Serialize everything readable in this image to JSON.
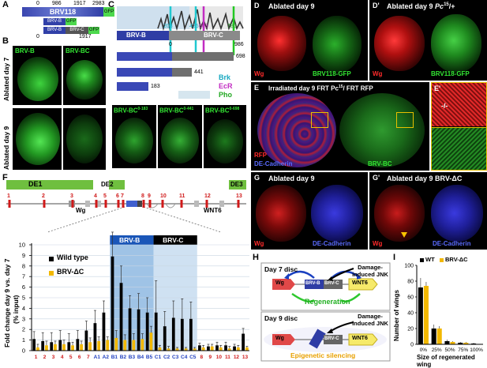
{
  "panels": {
    "A": {
      "letter": "A",
      "coords": [
        "0",
        "986",
        "1917",
        "2983"
      ],
      "brv118": "BRV118",
      "gfp": "GFP",
      "brvb": "BRV-B",
      "brvc": "BRV-C",
      "gfp2": "GFP",
      "gfp3": "GFP",
      "scale0": "0",
      "scale1917": "1917"
    },
    "B": {
      "letter": "B",
      "col1": "BRV-B",
      "col2": "BRV-BC",
      "row1": "Ablated day 7",
      "row2": "Ablated day 9"
    },
    "C": {
      "letter": "C",
      "peaks": [
        "203",
        "425",
        "503",
        "780"
      ],
      "brvb": "BRV-B",
      "brvc": "BRV-C",
      "zero": "0",
      "end986": "986",
      "len698": "698",
      "len441": "441",
      "len183": "183",
      "legend": [
        "Brk",
        "EcR",
        "Pho"
      ],
      "micro": [
        "BRV-BC",
        "0-183",
        "BRV-BC",
        "0-441",
        "BRV-BC",
        "0-698"
      ]
    },
    "D": {
      "letter": "D",
      "title": "Ablated day 9",
      "wg": "Wg",
      "gfp": "BRV118-GFP"
    },
    "D2": {
      "letter": "D'",
      "title": "Ablated day 9",
      "pc": "Pc",
      "pcsup": "15",
      "pcend": "/+",
      "wg": "Wg",
      "gfp": "BRV118-GFP"
    },
    "E": {
      "letter": "E",
      "title": "Irradiated day 9  FRT Pc",
      "sup": "15",
      "title_end": "/ FRT RFP",
      "rfp": "RFP",
      "dec": "DE-Cadherin",
      "brvbc": "BRV-BC"
    },
    "E2": {
      "letter": "E'",
      "genotype": "-/-"
    },
    "G": {
      "letter": "G",
      "title": "Ablated day 9",
      "wg": "Wg",
      "dec": "DE-Cadherin"
    },
    "G2": {
      "letter": "G'",
      "title": "Ablated day 9 BRV-ΔC",
      "wg": "Wg",
      "dec": "DE-Cadherin"
    },
    "F": {
      "letter": "F",
      "de1": "DE1",
      "de2": "DE2",
      "de3": "DE3",
      "wg": "Wg",
      "wnt6": "WNT6",
      "map_numbers": [
        "1",
        "2",
        "3",
        "4",
        "5",
        "6",
        "7",
        "8",
        "9",
        "10",
        "11",
        "12",
        "13"
      ],
      "brvb": "BRV-B",
      "brvc": "BRV-C",
      "ylabel1": "Fold change day 9 vs. day 7",
      "ylabel2": "(% input)",
      "legend_wt": "Wild type",
      "legend_dc": "BRV-ΔC"
    },
    "H": {
      "letter": "H",
      "day7": "Day 7 disc",
      "day9": "Day 9 disc",
      "jnk1": "Damage-induced JNK",
      "jnk2": "Damage-induced JNK",
      "wg": "Wg",
      "brvb": "BRV-B",
      "brvc": "BRV-C",
      "wnt6": "WNT6",
      "regeneration": "Regeneration",
      "wg2": "Wg",
      "brvc2": "BRV-C",
      "wnt6b": "WNT6",
      "silencing": "Epigenetic silencing"
    },
    "I": {
      "letter": "I",
      "legend_wt": "WT",
      "legend_dc": "BRV-ΔC",
      "ylabel": "Number of wings",
      "xlabel": "Size of regenerated wing"
    }
  },
  "chart_data": [
    {
      "type": "bar",
      "panel": "F",
      "categories": [
        "1",
        "2",
        "3",
        "4",
        "5",
        "6",
        "7",
        "A1",
        "A2",
        "B1",
        "B2",
        "B3",
        "B4",
        "B5",
        "C1",
        "C2",
        "C3",
        "C4",
        "C5",
        "8",
        "9",
        "10",
        "11",
        "12",
        "13"
      ],
      "category_colors": [
        "#d01a1a",
        "#d01a1a",
        "#d01a1a",
        "#d01a1a",
        "#d01a1a",
        "#d01a1a",
        "#d01a1a",
        "#1f3fbf",
        "#1f3fbf",
        "#1f3fbf",
        "#1f3fbf",
        "#1f3fbf",
        "#1f3fbf",
        "#1f3fbf",
        "#1f3fbf",
        "#1f3fbf",
        "#1f3fbf",
        "#1f3fbf",
        "#1f3fbf",
        "#d01a1a",
        "#d01a1a",
        "#d01a1a",
        "#d01a1a",
        "#d01a1a",
        "#d01a1a"
      ],
      "series": [
        {
          "name": "Wild type",
          "color": "#000000",
          "values": [
            1.1,
            0.9,
            0.8,
            1.0,
            0.8,
            1.1,
            1.9,
            2.6,
            3.6,
            8.9,
            6.4,
            4.0,
            3.9,
            3.6,
            3.6,
            2.3,
            3.1,
            3.0,
            3.0,
            0.5,
            0.4,
            0.5,
            0.5,
            0.4,
            1.6
          ],
          "errors": [
            0.7,
            0.8,
            0.9,
            0.9,
            0.8,
            0.8,
            0.9,
            1.2,
            1.1,
            2.3,
            1.6,
            1.2,
            1.5,
            1.4,
            3.0,
            1.4,
            1.6,
            1.9,
            1.6,
            0.2,
            0.2,
            0.3,
            0.3,
            0.2,
            0.5
          ]
        },
        {
          "name": "BRV-ΔC",
          "color": "#f2b800",
          "values": [
            0.3,
            0.5,
            0.6,
            0.6,
            0.5,
            0.6,
            0.8,
            0.9,
            1.0,
            1.2,
            1.0,
            1.0,
            1.1,
            1.7,
            0.3,
            0.2,
            0.2,
            0.2,
            0.2,
            0.3,
            0.4,
            0.3,
            0.2,
            0.3,
            0.3
          ],
          "errors": [
            0.3,
            0.4,
            0.3,
            0.4,
            0.3,
            0.3,
            0.4,
            0.4,
            0.3,
            0.7,
            0.5,
            0.6,
            0.5,
            0.6,
            0.2,
            0.2,
            0.1,
            0.1,
            0.1,
            0.2,
            0.2,
            0.2,
            0.2,
            0.2,
            0.1
          ]
        }
      ],
      "ylim": [
        0,
        10
      ],
      "yticks": [
        "0",
        "1",
        "2",
        "3",
        "4",
        "5",
        "6",
        "7",
        "8",
        "9",
        "10"
      ],
      "highlight_B": [
        "B1",
        "B5"
      ],
      "highlight_C": [
        "C1",
        "C5"
      ]
    },
    {
      "type": "bar",
      "panel": "I",
      "categories": [
        "0%",
        "25%",
        "50%",
        "75%",
        "100%"
      ],
      "series": [
        {
          "name": "WT",
          "color": "#000000",
          "values": [
            72,
            20,
            4,
            2,
            1
          ],
          "errors": [
            12,
            5,
            2,
            1,
            1
          ]
        },
        {
          "name": "BRV-ΔC",
          "color": "#f2b800",
          "values": [
            74,
            20,
            3,
            2,
            0
          ],
          "errors": [
            5,
            3,
            1,
            1,
            0
          ]
        }
      ],
      "ylim": [
        0,
        100
      ],
      "yticks": [
        "0",
        "20",
        "40",
        "60",
        "80",
        "100"
      ]
    }
  ]
}
